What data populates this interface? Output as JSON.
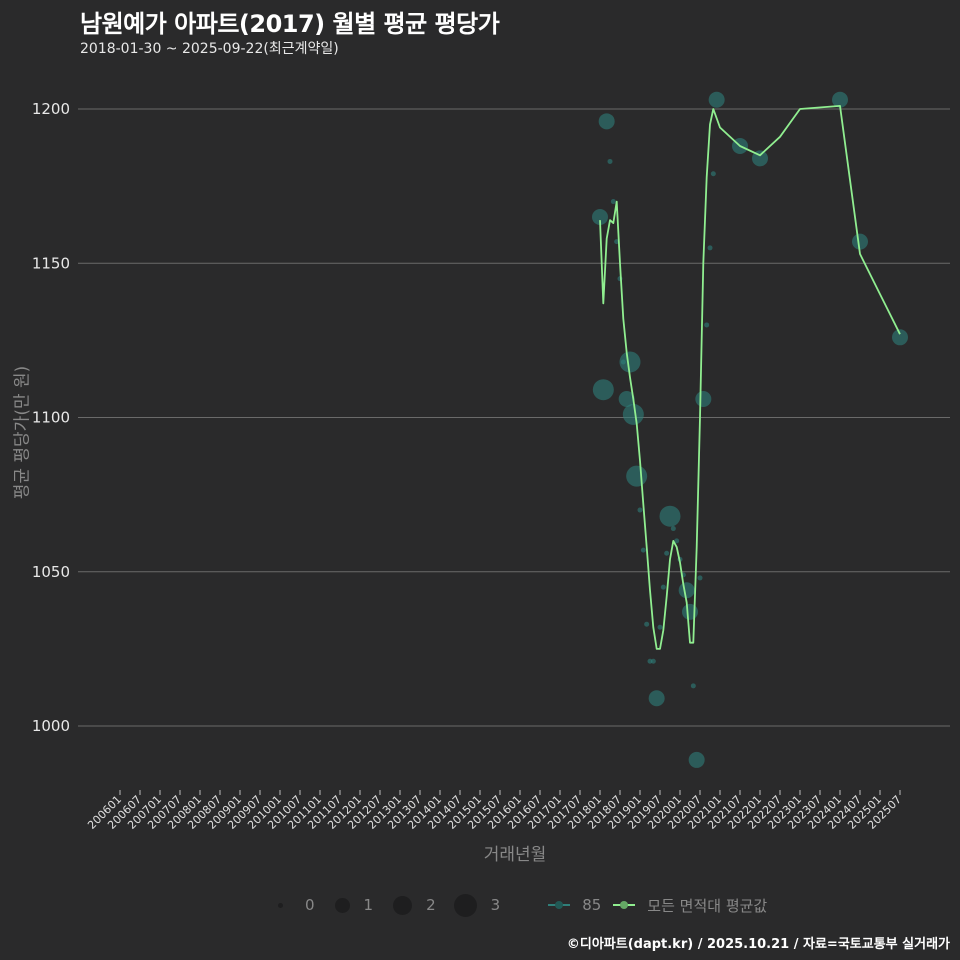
{
  "header": {
    "title": "남원예가 아파트(2017) 월별 평균 평당가",
    "subtitle": "2018-01-30 ~ 2025-09-22(최근계약일)"
  },
  "axes": {
    "ylabel": "평균 평당가(만 원)",
    "xlabel": "거래년월"
  },
  "legend": {
    "size_labels": [
      "0",
      "1",
      "2",
      "3"
    ],
    "series_labels": [
      "85",
      "모든 면적대 평균값"
    ]
  },
  "caption": "©디아파트(dapt.kr) / 2025.10.21 / 자료=국토교통부 실거래가",
  "colors": {
    "background": "#2a2a2b",
    "grid": "#6a6a6a",
    "series_85": "#2f7f79",
    "avg_line": "#90ee90"
  },
  "chart_data": {
    "type": "line",
    "title": "남원예가 아파트(2017) 월별 평균 평당가",
    "subtitle": "2018-01-30 ~ 2025-09-22(최근계약일)",
    "xlabel": "거래년월",
    "ylabel": "평균 평당가(만 원)",
    "ylim": [
      983,
      1207
    ],
    "yticks": [
      1000,
      1050,
      1100,
      1150,
      1200
    ],
    "xticks": [
      "200601",
      "200607",
      "200701",
      "200707",
      "200801",
      "200807",
      "200901",
      "200907",
      "201001",
      "201007",
      "201101",
      "201107",
      "201201",
      "201207",
      "201301",
      "201307",
      "201401",
      "201407",
      "201501",
      "201507",
      "201601",
      "201607",
      "201701",
      "201707",
      "201801",
      "201807",
      "201901",
      "201907",
      "202001",
      "202007",
      "202101",
      "202107",
      "202201",
      "202207",
      "202301",
      "202307",
      "202401",
      "202407",
      "202501",
      "202507"
    ],
    "grid": true,
    "legend_position": "bottom",
    "series": [
      {
        "name": "모든 면적대 평균값",
        "kind": "line",
        "points": [
          [
            "201801",
            1164
          ],
          [
            "201802",
            1137
          ],
          [
            "201803",
            1158
          ],
          [
            "201804",
            1164
          ],
          [
            "201805",
            1163
          ],
          [
            "201806",
            1170
          ],
          [
            "201807",
            1150
          ],
          [
            "201808",
            1132
          ],
          [
            "201809",
            1121
          ],
          [
            "201810",
            1113
          ],
          [
            "201811",
            1106
          ],
          [
            "201812",
            1098
          ],
          [
            "201901",
            1086
          ],
          [
            "201902",
            1072
          ],
          [
            "201903",
            1058
          ],
          [
            "201904",
            1044
          ],
          [
            "201905",
            1032
          ],
          [
            "201906",
            1025
          ],
          [
            "201907",
            1025
          ],
          [
            "201908",
            1031
          ],
          [
            "201909",
            1042
          ],
          [
            "201910",
            1054
          ],
          [
            "201911",
            1060
          ],
          [
            "201912",
            1058
          ],
          [
            "202001",
            1053
          ],
          [
            "202002",
            1046
          ],
          [
            "202003",
            1040
          ],
          [
            "202004",
            1027
          ],
          [
            "202005",
            1027
          ],
          [
            "202006",
            1058
          ],
          [
            "202007",
            1100
          ],
          [
            "202008",
            1150
          ],
          [
            "202009",
            1178
          ],
          [
            "202010",
            1195
          ],
          [
            "202011",
            1200
          ],
          [
            "202101",
            1194
          ],
          [
            "202107",
            1188
          ],
          [
            "202201",
            1185
          ],
          [
            "202207",
            1191
          ],
          [
            "202301",
            1200
          ],
          [
            "202401",
            1201
          ],
          [
            "202407",
            1153
          ],
          [
            "202501",
            1140
          ],
          [
            "202507",
            1127
          ]
        ]
      },
      {
        "name": "85",
        "kind": "scatter",
        "points": [
          {
            "x": "201801",
            "y": 1165,
            "n": 1
          },
          {
            "x": "201802",
            "y": 1109,
            "n": 2
          },
          {
            "x": "201803",
            "y": 1196,
            "n": 1
          },
          {
            "x": "201804",
            "y": 1183,
            "n": 0
          },
          {
            "x": "201805",
            "y": 1170,
            "n": 0
          },
          {
            "x": "201806",
            "y": 1157,
            "n": 0
          },
          {
            "x": "201807",
            "y": 1145,
            "n": 0
          },
          {
            "x": "201808",
            "y": 1118,
            "n": 0
          },
          {
            "x": "201809",
            "y": 1106,
            "n": 1
          },
          {
            "x": "201810",
            "y": 1118,
            "n": 2
          },
          {
            "x": "201811",
            "y": 1101,
            "n": 2
          },
          {
            "x": "201812",
            "y": 1081,
            "n": 2
          },
          {
            "x": "201901",
            "y": 1070,
            "n": 0
          },
          {
            "x": "201902",
            "y": 1057,
            "n": 0
          },
          {
            "x": "201903",
            "y": 1033,
            "n": 0
          },
          {
            "x": "201904",
            "y": 1021,
            "n": 0
          },
          {
            "x": "201905",
            "y": 1021,
            "n": 0
          },
          {
            "x": "201906",
            "y": 1009,
            "n": 1
          },
          {
            "x": "201907",
            "y": 1032,
            "n": 0
          },
          {
            "x": "201908",
            "y": 1045,
            "n": 0
          },
          {
            "x": "201909",
            "y": 1056,
            "n": 0
          },
          {
            "x": "201910",
            "y": 1068,
            "n": 2
          },
          {
            "x": "201911",
            "y": 1064,
            "n": 0
          },
          {
            "x": "201912",
            "y": 1060,
            "n": 0
          },
          {
            "x": "202001",
            "y": 1054,
            "n": 0
          },
          {
            "x": "202002",
            "y": 1049,
            "n": 0
          },
          {
            "x": "202003",
            "y": 1044,
            "n": 1
          },
          {
            "x": "202004",
            "y": 1037,
            "n": 1
          },
          {
            "x": "202005",
            "y": 1013,
            "n": 0
          },
          {
            "x": "202006",
            "y": 989,
            "n": 1
          },
          {
            "x": "202007",
            "y": 1048,
            "n": 0
          },
          {
            "x": "202008",
            "y": 1106,
            "n": 1
          },
          {
            "x": "202009",
            "y": 1130,
            "n": 0
          },
          {
            "x": "202010",
            "y": 1155,
            "n": 0
          },
          {
            "x": "202011",
            "y": 1179,
            "n": 0
          },
          {
            "x": "202012",
            "y": 1203,
            "n": 1
          },
          {
            "x": "202107",
            "y": 1188,
            "n": 1
          },
          {
            "x": "202201",
            "y": 1184,
            "n": 1
          },
          {
            "x": "202401",
            "y": 1203,
            "n": 1
          },
          {
            "x": "202407",
            "y": 1157,
            "n": 1
          },
          {
            "x": "202507",
            "y": 1126,
            "n": 1
          }
        ]
      }
    ]
  }
}
